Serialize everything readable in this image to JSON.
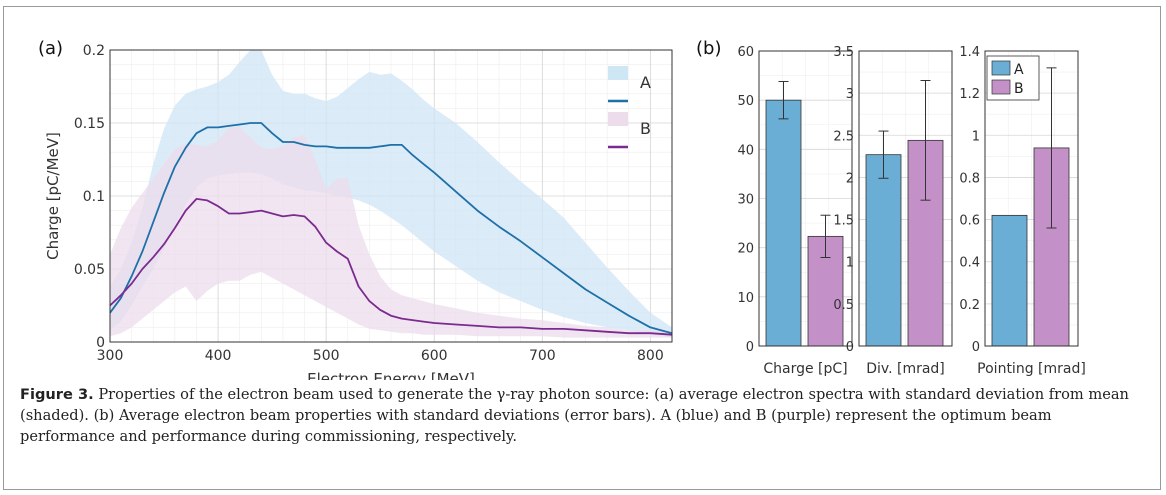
{
  "chart_data": [
    {
      "type": "area",
      "panel_label": "(a)",
      "xlabel": "Electron Energy [MeV]",
      "ylabel": "Charge [pC/MeV]",
      "xlim": [
        300,
        820
      ],
      "ylim": [
        0,
        0.2
      ],
      "xticks": [
        "300",
        "400",
        "500",
        "600",
        "700",
        "800"
      ],
      "yticks": [
        "0",
        "0.05",
        "0.1",
        "0.15",
        "0.2"
      ],
      "grid": true,
      "legend_position": "top-right",
      "series": [
        {
          "name": "A",
          "color": "#1f6fa8",
          "band_color": "#cfe6f5",
          "x": [
            300,
            310,
            320,
            330,
            340,
            350,
            360,
            370,
            380,
            390,
            400,
            410,
            420,
            430,
            440,
            450,
            460,
            470,
            480,
            490,
            500,
            510,
            520,
            530,
            540,
            550,
            560,
            570,
            580,
            590,
            600,
            620,
            640,
            660,
            680,
            700,
            720,
            740,
            760,
            780,
            800,
            820
          ],
          "mean": [
            0.02,
            0.03,
            0.045,
            0.062,
            0.082,
            0.102,
            0.12,
            0.133,
            0.143,
            0.147,
            0.147,
            0.148,
            0.149,
            0.15,
            0.15,
            0.143,
            0.137,
            0.137,
            0.135,
            0.134,
            0.134,
            0.133,
            0.133,
            0.133,
            0.133,
            0.134,
            0.135,
            0.135,
            0.128,
            0.122,
            0.116,
            0.103,
            0.09,
            0.079,
            0.069,
            0.058,
            0.047,
            0.036,
            0.027,
            0.018,
            0.01,
            0.006
          ],
          "upper": [
            0.038,
            0.05,
            0.068,
            0.092,
            0.122,
            0.146,
            0.162,
            0.17,
            0.173,
            0.175,
            0.178,
            0.183,
            0.192,
            0.2,
            0.2,
            0.183,
            0.172,
            0.17,
            0.17,
            0.167,
            0.165,
            0.168,
            0.174,
            0.18,
            0.185,
            0.183,
            0.184,
            0.179,
            0.173,
            0.166,
            0.16,
            0.15,
            0.137,
            0.123,
            0.11,
            0.098,
            0.085,
            0.068,
            0.051,
            0.035,
            0.02,
            0.01
          ],
          "lower": [
            0.008,
            0.014,
            0.025,
            0.038,
            0.05,
            0.064,
            0.08,
            0.094,
            0.106,
            0.112,
            0.114,
            0.115,
            0.116,
            0.116,
            0.115,
            0.112,
            0.108,
            0.106,
            0.104,
            0.103,
            0.102,
            0.1,
            0.099,
            0.097,
            0.094,
            0.09,
            0.085,
            0.08,
            0.074,
            0.068,
            0.062,
            0.052,
            0.042,
            0.034,
            0.028,
            0.022,
            0.017,
            0.013,
            0.01,
            0.008,
            0.005,
            0.003
          ]
        },
        {
          "name": "B",
          "color": "#7b2a8f",
          "band_color": "#ecdcec",
          "x": [
            300,
            310,
            320,
            330,
            340,
            350,
            360,
            370,
            380,
            390,
            400,
            410,
            420,
            430,
            440,
            450,
            460,
            470,
            480,
            490,
            500,
            510,
            520,
            530,
            540,
            550,
            560,
            570,
            580,
            590,
            600,
            620,
            640,
            660,
            680,
            700,
            720,
            740,
            760,
            780,
            800,
            820
          ],
          "mean": [
            0.025,
            0.032,
            0.04,
            0.05,
            0.058,
            0.067,
            0.078,
            0.09,
            0.098,
            0.097,
            0.093,
            0.088,
            0.088,
            0.089,
            0.09,
            0.088,
            0.086,
            0.087,
            0.086,
            0.079,
            0.068,
            0.062,
            0.057,
            0.038,
            0.028,
            0.022,
            0.018,
            0.016,
            0.015,
            0.014,
            0.013,
            0.012,
            0.011,
            0.01,
            0.01,
            0.009,
            0.009,
            0.008,
            0.007,
            0.006,
            0.006,
            0.005
          ],
          "upper": [
            0.06,
            0.078,
            0.092,
            0.102,
            0.112,
            0.122,
            0.132,
            0.136,
            0.135,
            0.134,
            0.138,
            0.147,
            0.147,
            0.14,
            0.133,
            0.132,
            0.134,
            0.14,
            0.142,
            0.125,
            0.105,
            0.112,
            0.112,
            0.08,
            0.06,
            0.045,
            0.036,
            0.032,
            0.03,
            0.028,
            0.026,
            0.023,
            0.02,
            0.018,
            0.016,
            0.015,
            0.013,
            0.011,
            0.01,
            0.008,
            0.008,
            0.007
          ],
          "lower": [
            0.004,
            0.006,
            0.01,
            0.016,
            0.022,
            0.028,
            0.034,
            0.038,
            0.028,
            0.035,
            0.04,
            0.042,
            0.042,
            0.046,
            0.048,
            0.044,
            0.04,
            0.036,
            0.032,
            0.028,
            0.024,
            0.02,
            0.016,
            0.012,
            0.009,
            0.008,
            0.007,
            0.006,
            0.006,
            0.005,
            0.005,
            0.005,
            0.004,
            0.004,
            0.004,
            0.004,
            0.003,
            0.003,
            0.003,
            0.003,
            0.003,
            0.003
          ]
        }
      ]
    },
    {
      "type": "bar",
      "panel_label": "(b)",
      "xlabel": "Charge [pC]",
      "ylim": [
        0,
        60
      ],
      "yticks": [
        "0",
        "10",
        "20",
        "30",
        "40",
        "50",
        "60"
      ],
      "grid": true,
      "series": [
        {
          "name": "A",
          "value": 50,
          "error": 3.8
        },
        {
          "name": "B",
          "value": 22.3,
          "error": 4.3
        }
      ]
    },
    {
      "type": "bar",
      "xlabel": "Div. [mrad]",
      "ylim": [
        0,
        3.5
      ],
      "yticks": [
        "0",
        "0.5",
        "1",
        "1.5",
        "2",
        "2.5",
        "3",
        "3.5"
      ],
      "grid": true,
      "series": [
        {
          "name": "A",
          "value": 2.27,
          "error": 0.28
        },
        {
          "name": "B",
          "value": 2.44,
          "error": 0.71
        }
      ]
    },
    {
      "type": "bar",
      "xlabel": "Pointing [mrad]",
      "ylim": [
        0,
        1.4
      ],
      "yticks": [
        "0",
        "0.2",
        "0.4",
        "0.6",
        "0.8",
        "1",
        "1.2",
        "1.4"
      ],
      "grid": true,
      "legend_position": "top-left",
      "series": [
        {
          "name": "A",
          "value": 0.62,
          "error": 0
        },
        {
          "name": "B",
          "value": 0.94,
          "error": 0.38
        }
      ]
    }
  ],
  "colors": {
    "bar_a": "#6aaed6",
    "bar_b": "#c391c8"
  },
  "caption": {
    "label": "Figure 3.",
    "text": "Properties of the electron beam used to generate the γ-ray photon source: (a) average electron spectra with standard deviation from mean (shaded). (b) Average electron beam properties with standard deviations (error bars). A (blue) and B (purple) represent the optimum beam performance and performance during commissioning, respectively."
  }
}
